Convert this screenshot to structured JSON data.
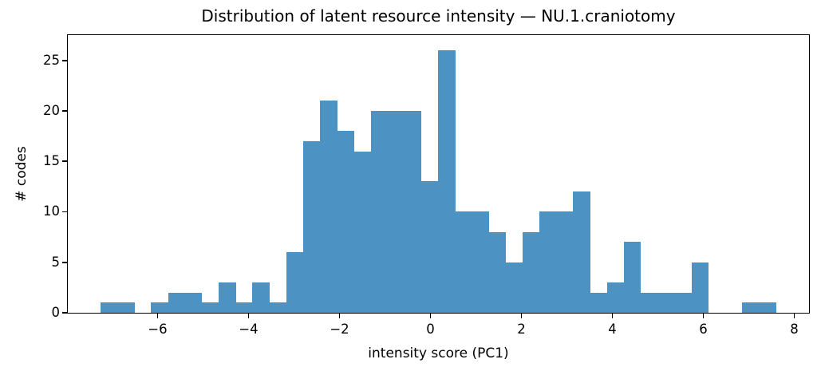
{
  "chart_data": {
    "type": "bar",
    "subtype": "histogram",
    "title": "Distribution of latent resource intensity — NU.1.craniotomy",
    "xlabel": "intensity score (PC1)",
    "ylabel": "# codes",
    "bar_color": "#4c92c3",
    "axis_color": "#000000",
    "grid": false,
    "legend": "none",
    "bin_start": -7.254,
    "bin_width": 0.3712,
    "counts": [
      1,
      1,
      0,
      1,
      2,
      2,
      1,
      3,
      1,
      3,
      1,
      6,
      17,
      21,
      18,
      16,
      20,
      20,
      20,
      13,
      26,
      10,
      10,
      8,
      5,
      8,
      10,
      10,
      12,
      2,
      3,
      7,
      2,
      2,
      2,
      5,
      0,
      0,
      1,
      1
    ],
    "total_codes": 291,
    "xlim": [
      -7.973,
      8.324
    ],
    "ylim": [
      0,
      27.5
    ],
    "xticks": [
      -6,
      -4,
      -2,
      0,
      2,
      4,
      6,
      8
    ],
    "yticks": [
      0,
      5,
      10,
      15,
      20,
      25
    ]
  }
}
